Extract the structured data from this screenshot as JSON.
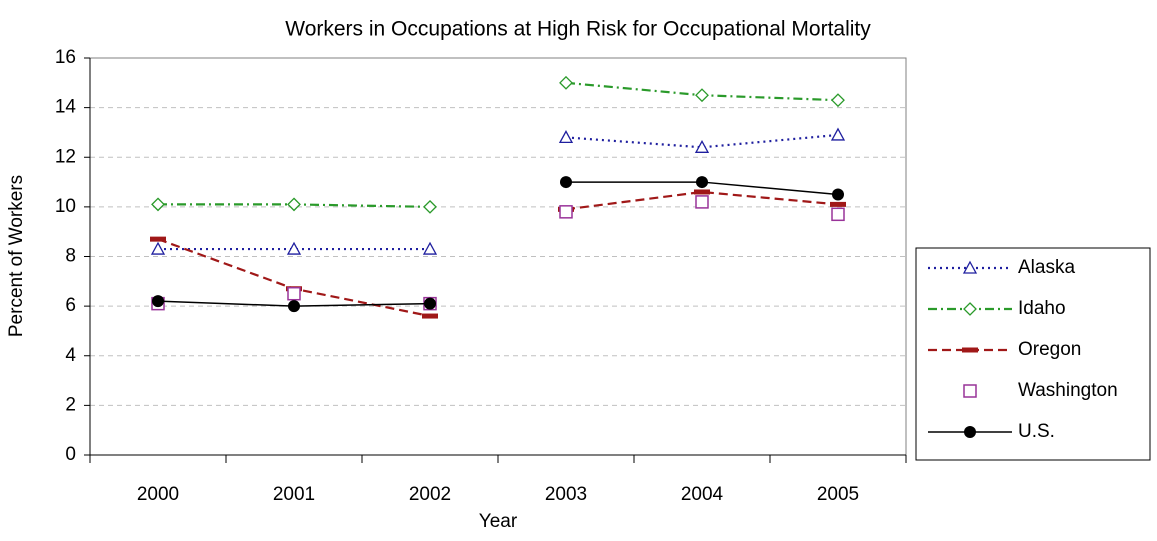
{
  "chart_data": {
    "type": "line",
    "title": "Workers in Occupations at High Risk for Occupational Mortality",
    "x_label": "Year",
    "y_label": "Percent of Workers",
    "categories": [
      "2000",
      "2001",
      "2002",
      "2003",
      "2004",
      "2005"
    ],
    "line_break_after": 2,
    "ylim": [
      0,
      16
    ],
    "yticks": [
      0,
      2,
      4,
      6,
      8,
      10,
      12,
      14,
      16
    ],
    "grid": true,
    "legend": "right",
    "series": [
      {
        "name": "Alaska",
        "color": "#1f1f9f",
        "line_style": "dotted",
        "marker": "triangle",
        "values": [
          8.3,
          8.3,
          8.3,
          12.8,
          12.4,
          12.9
        ]
      },
      {
        "name": "Idaho",
        "color": "#2a9a2a",
        "line_style": "dash-dot",
        "marker": "diamond",
        "values": [
          10.1,
          10.1,
          10.0,
          15.0,
          14.5,
          14.3
        ]
      },
      {
        "name": "Oregon",
        "color": "#a01818",
        "line_style": "dashed",
        "marker": "dash",
        "values": [
          8.7,
          6.7,
          5.6,
          9.9,
          10.6,
          10.1
        ]
      },
      {
        "name": "Washington",
        "color": "#993399",
        "line_style": "none",
        "marker": "square",
        "values": [
          6.1,
          6.5,
          6.1,
          9.8,
          10.2,
          9.7
        ]
      },
      {
        "name": "U.S.",
        "color": "#000000",
        "line_style": "solid",
        "marker": "circle",
        "values": [
          6.2,
          6.0,
          6.1,
          11.0,
          11.0,
          10.5
        ]
      }
    ]
  }
}
